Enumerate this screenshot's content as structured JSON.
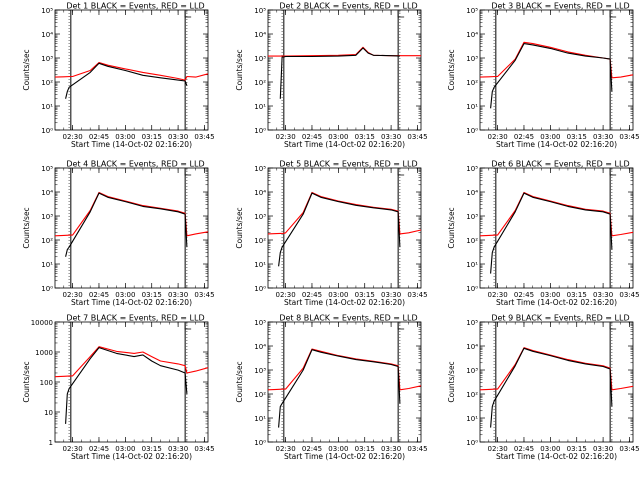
{
  "figure": {
    "x_label": "Start Time (14-Oct-02 02:16:20)",
    "y_label": "Counts/sec",
    "colors": {
      "events": "#000000",
      "lld": "#ff0000",
      "axes": "#000000",
      "background": "#ffffff"
    }
  },
  "chart_data": [
    {
      "type": "line",
      "title": "Det 1  BLACK = Events, RED = LLD",
      "x_ticks": [
        "02:30",
        "02:45",
        "03:00",
        "03:15",
        "03:30",
        "03:45"
      ],
      "y_scale": "log",
      "y_ticks": [
        "10⁰",
        "10¹",
        "10²",
        "10³",
        "10⁴",
        "10⁵"
      ],
      "ylim": [
        1,
        100000
      ],
      "series": [
        {
          "name": "Events",
          "color": "#000000",
          "x": [
            "02:20",
            "02:24",
            "02:26",
            "02:27",
            "02:28",
            "02:40",
            "02:45",
            "02:50",
            "03:00",
            "03:10",
            "03:20",
            "03:30",
            "03:34",
            "03:35",
            "03:47"
          ],
          "y": [
            null,
            null,
            20,
            40,
            60,
            250,
            600,
            450,
            300,
            190,
            150,
            120,
            110,
            70,
            null
          ]
        },
        {
          "name": "LLD",
          "color": "#ff0000",
          "x": [
            "02:20",
            "02:25",
            "02:29",
            "02:30",
            "02:40",
            "02:45",
            "02:50",
            "03:00",
            "03:10",
            "03:20",
            "03:30",
            "03:34",
            "03:35",
            "03:40",
            "03:47"
          ],
          "y": [
            160,
            165,
            170,
            170,
            300,
            650,
            500,
            350,
            250,
            190,
            140,
            120,
            170,
            160,
            220
          ]
        }
      ]
    },
    {
      "type": "line",
      "title": "Det 2  BLACK = Events, RED = LLD",
      "x_ticks": [
        "02:30",
        "02:45",
        "03:00",
        "03:15",
        "03:30",
        "03:45"
      ],
      "y_scale": "log",
      "y_ticks": [
        "10⁰",
        "10¹",
        "10²",
        "10³",
        "10⁴",
        "10⁵"
      ],
      "ylim": [
        1,
        100000
      ],
      "series": [
        {
          "name": "Events",
          "color": "#000000",
          "x": [
            "02:20",
            "02:25",
            "02:27",
            "02:28",
            "02:29",
            "02:30",
            "02:45",
            "03:00",
            "03:10",
            "03:14",
            "03:17",
            "03:20",
            "03:30",
            "03:35",
            "03:36",
            "03:47"
          ],
          "y": [
            null,
            null,
            20,
            1100,
            1100,
            1150,
            1150,
            1200,
            1300,
            2600,
            1600,
            1300,
            1250,
            1200,
            null,
            null
          ]
        },
        {
          "name": "LLD",
          "color": "#ff0000",
          "x": [
            "02:20",
            "02:30",
            "02:45",
            "03:00",
            "03:10",
            "03:14",
            "03:17",
            "03:20",
            "03:30",
            "03:47"
          ],
          "y": [
            1200,
            1200,
            1250,
            1300,
            1400,
            2800,
            1700,
            1300,
            1250,
            1250
          ]
        }
      ]
    },
    {
      "type": "line",
      "title": "Det 3  BLACK = Events, RED = LLD",
      "x_ticks": [
        "02:30",
        "02:45",
        "03:00",
        "03:15",
        "03:30",
        "03:45"
      ],
      "y_scale": "log",
      "y_ticks": [
        "10⁰",
        "10¹",
        "10²",
        "10³",
        "10⁴",
        "10⁵"
      ],
      "ylim": [
        1,
        100000
      ],
      "series": [
        {
          "name": "Events",
          "color": "#000000",
          "x": [
            "02:20",
            "02:24",
            "02:26",
            "02:27",
            "02:28",
            "02:40",
            "02:45",
            "02:50",
            "03:00",
            "03:10",
            "03:20",
            "03:30",
            "03:34",
            "03:35",
            "03:47"
          ],
          "y": [
            null,
            null,
            8,
            40,
            60,
            800,
            4000,
            3500,
            2500,
            1600,
            1200,
            1000,
            900,
            40,
            null
          ]
        },
        {
          "name": "LLD",
          "color": "#ff0000",
          "x": [
            "02:20",
            "02:25",
            "02:29",
            "02:30",
            "02:40",
            "02:45",
            "02:50",
            "03:00",
            "03:10",
            "03:20",
            "03:30",
            "03:34",
            "03:35",
            "03:40",
            "03:47"
          ],
          "y": [
            160,
            165,
            170,
            170,
            900,
            4500,
            4000,
            2800,
            1800,
            1300,
            1000,
            900,
            150,
            160,
            200
          ]
        }
      ]
    },
    {
      "type": "line",
      "title": "Det 4  BLACK = Events, RED = LLD",
      "x_ticks": [
        "02:30",
        "02:45",
        "03:00",
        "03:15",
        "03:30",
        "03:45"
      ],
      "y_scale": "log",
      "y_ticks": [
        "10⁰",
        "10¹",
        "10²",
        "10³",
        "10⁴",
        "10⁵"
      ],
      "ylim": [
        1,
        100000
      ],
      "series": [
        {
          "name": "Events",
          "color": "#000000",
          "x": [
            "02:20",
            "02:24",
            "02:26",
            "02:27",
            "02:28",
            "02:40",
            "02:45",
            "02:50",
            "03:00",
            "03:10",
            "03:20",
            "03:30",
            "03:34",
            "03:35",
            "03:47"
          ],
          "y": [
            null,
            null,
            20,
            40,
            50,
            1500,
            9000,
            6000,
            4000,
            2500,
            2000,
            1500,
            1200,
            50,
            null
          ]
        },
        {
          "name": "LLD",
          "color": "#ff0000",
          "x": [
            "02:20",
            "02:25",
            "02:29",
            "02:30",
            "02:40",
            "02:45",
            "02:50",
            "03:00",
            "03:10",
            "03:20",
            "03:30",
            "03:34",
            "03:35",
            "03:40",
            "03:47"
          ],
          "y": [
            150,
            155,
            160,
            160,
            1700,
            9500,
            6500,
            4200,
            2700,
            2100,
            1600,
            1300,
            150,
            180,
            220
          ]
        }
      ]
    },
    {
      "type": "line",
      "title": "Det 5  BLACK = Events, RED = LLD",
      "x_ticks": [
        "02:30",
        "02:45",
        "03:00",
        "03:15",
        "03:30",
        "03:45"
      ],
      "y_scale": "log",
      "y_ticks": [
        "10⁰",
        "10¹",
        "10²",
        "10³",
        "10⁴",
        "10⁵"
      ],
      "ylim": [
        1,
        100000
      ],
      "series": [
        {
          "name": "Events",
          "color": "#000000",
          "x": [
            "02:20",
            "02:24",
            "02:26",
            "02:27",
            "02:28",
            "02:40",
            "02:45",
            "02:50",
            "03:00",
            "03:10",
            "03:20",
            "03:30",
            "03:34",
            "03:35",
            "03:47"
          ],
          "y": [
            null,
            null,
            8,
            30,
            50,
            1200,
            9000,
            6000,
            4000,
            2800,
            2200,
            1800,
            1500,
            50,
            null
          ]
        },
        {
          "name": "LLD",
          "color": "#ff0000",
          "x": [
            "02:20",
            "02:25",
            "02:29",
            "02:30",
            "02:40",
            "02:45",
            "02:50",
            "03:00",
            "03:10",
            "03:20",
            "03:30",
            "03:34",
            "03:35",
            "03:40",
            "03:47"
          ],
          "y": [
            180,
            185,
            190,
            200,
            1400,
            9500,
            6500,
            4200,
            3000,
            2300,
            1900,
            1600,
            180,
            200,
            260
          ]
        }
      ]
    },
    {
      "type": "line",
      "title": "Det 6  BLACK = Events, RED = LLD",
      "x_ticks": [
        "02:30",
        "02:45",
        "03:00",
        "03:15",
        "03:30",
        "03:45"
      ],
      "y_scale": "log",
      "y_ticks": [
        "10⁰",
        "10¹",
        "10²",
        "10³",
        "10⁴",
        "10⁵"
      ],
      "ylim": [
        1,
        100000
      ],
      "series": [
        {
          "name": "Events",
          "color": "#000000",
          "x": [
            "02:20",
            "02:24",
            "02:26",
            "02:27",
            "02:28",
            "02:40",
            "02:45",
            "02:50",
            "03:00",
            "03:10",
            "03:20",
            "03:30",
            "03:34",
            "03:35",
            "03:47"
          ],
          "y": [
            null,
            null,
            4,
            30,
            50,
            1500,
            9000,
            6000,
            4000,
            2500,
            1800,
            1500,
            1200,
            40,
            null
          ]
        },
        {
          "name": "LLD",
          "color": "#ff0000",
          "x": [
            "02:20",
            "02:25",
            "02:29",
            "02:30",
            "02:40",
            "02:45",
            "02:50",
            "03:00",
            "03:10",
            "03:20",
            "03:30",
            "03:34",
            "03:35",
            "03:40",
            "03:47"
          ],
          "y": [
            150,
            155,
            160,
            160,
            1700,
            9500,
            6500,
            4200,
            2700,
            1900,
            1600,
            1300,
            150,
            170,
            210
          ]
        }
      ]
    },
    {
      "type": "line",
      "title": "Det 7  BLACK = Events, RED = LLD",
      "x_ticks": [
        "02:30",
        "02:45",
        "03:00",
        "03:15",
        "03:30",
        "03:45"
      ],
      "y_scale": "log",
      "y_ticks": [
        "1",
        "10",
        "100",
        "1000",
        "10000"
      ],
      "ylim": [
        1,
        10000
      ],
      "series": [
        {
          "name": "Events",
          "color": "#000000",
          "x": [
            "02:20",
            "02:24",
            "02:26",
            "02:27",
            "02:28",
            "02:40",
            "02:45",
            "02:55",
            "03:05",
            "03:10",
            "03:15",
            "03:20",
            "03:30",
            "03:34",
            "03:35",
            "03:47"
          ],
          "y": [
            null,
            null,
            4,
            40,
            60,
            600,
            1400,
            900,
            700,
            800,
            500,
            350,
            250,
            200,
            40,
            null
          ]
        },
        {
          "name": "LLD",
          "color": "#ff0000",
          "x": [
            "02:20",
            "02:25",
            "02:29",
            "02:30",
            "02:40",
            "02:45",
            "02:55",
            "03:05",
            "03:10",
            "03:15",
            "03:20",
            "03:30",
            "03:34",
            "03:35",
            "03:40",
            "03:47"
          ],
          "y": [
            150,
            155,
            160,
            160,
            700,
            1500,
            1050,
            900,
            1000,
            700,
            500,
            400,
            350,
            200,
            230,
            300
          ]
        }
      ]
    },
    {
      "type": "line",
      "title": "Det 8  BLACK = Events, RED = LLD",
      "x_ticks": [
        "02:30",
        "02:45",
        "03:00",
        "03:15",
        "03:30",
        "03:45"
      ],
      "y_scale": "log",
      "y_ticks": [
        "10⁰",
        "10¹",
        "10²",
        "10³",
        "10⁴",
        "10⁵"
      ],
      "ylim": [
        1,
        100000
      ],
      "series": [
        {
          "name": "Events",
          "color": "#000000",
          "x": [
            "02:20",
            "02:24",
            "02:26",
            "02:27",
            "02:28",
            "02:40",
            "02:45",
            "02:50",
            "03:00",
            "03:10",
            "03:20",
            "03:30",
            "03:34",
            "03:35",
            "03:47"
          ],
          "y": [
            null,
            null,
            4,
            30,
            40,
            1000,
            7000,
            5500,
            3800,
            2700,
            2200,
            1700,
            1400,
            40,
            null
          ]
        },
        {
          "name": "LLD",
          "color": "#ff0000",
          "x": [
            "02:20",
            "02:25",
            "02:29",
            "02:30",
            "02:40",
            "02:45",
            "02:50",
            "03:00",
            "03:10",
            "03:20",
            "03:30",
            "03:34",
            "03:35",
            "03:40",
            "03:47"
          ],
          "y": [
            150,
            155,
            160,
            160,
            1200,
            7500,
            6000,
            4000,
            2900,
            2300,
            1800,
            1500,
            150,
            170,
            220
          ]
        }
      ]
    },
    {
      "type": "line",
      "title": "Det 9  BLACK = Events, RED = LLD",
      "x_ticks": [
        "02:30",
        "02:45",
        "03:00",
        "03:15",
        "03:30",
        "03:45"
      ],
      "y_scale": "log",
      "y_ticks": [
        "10⁰",
        "10¹",
        "10²",
        "10³",
        "10⁴",
        "10⁵"
      ],
      "ylim": [
        1,
        100000
      ],
      "series": [
        {
          "name": "Events",
          "color": "#000000",
          "x": [
            "02:20",
            "02:24",
            "02:26",
            "02:27",
            "02:28",
            "02:40",
            "02:45",
            "02:50",
            "03:00",
            "03:10",
            "03:20",
            "03:30",
            "03:34",
            "03:35",
            "03:47"
          ],
          "y": [
            null,
            null,
            4,
            30,
            50,
            1500,
            8000,
            6000,
            4000,
            2500,
            1800,
            1400,
            1100,
            30,
            null
          ]
        },
        {
          "name": "LLD",
          "color": "#ff0000",
          "x": [
            "02:20",
            "02:25",
            "02:29",
            "02:30",
            "02:40",
            "02:45",
            "02:50",
            "03:00",
            "03:10",
            "03:20",
            "03:30",
            "03:34",
            "03:35",
            "03:40",
            "03:47"
          ],
          "y": [
            150,
            155,
            160,
            160,
            1700,
            8500,
            6500,
            4200,
            2700,
            1900,
            1500,
            1200,
            150,
            170,
            210
          ]
        }
      ]
    }
  ]
}
